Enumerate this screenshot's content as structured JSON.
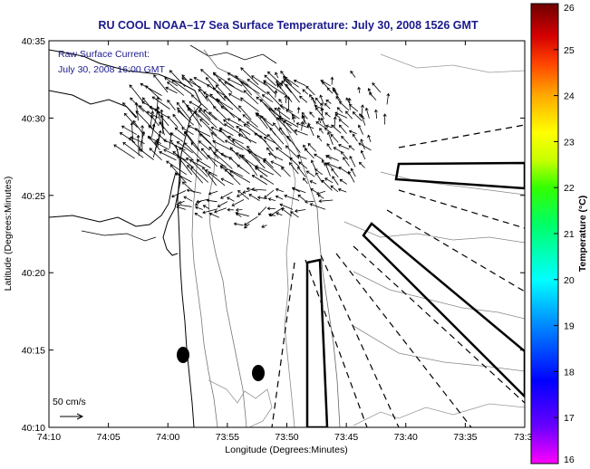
{
  "title": "RU COOL  NOAA–17  Sea Surface Temperature:  July 30, 2008 1526 GMT",
  "legend": {
    "line1": "Raw Surface Current:",
    "line2": "July 30, 2008 16:00 GMT"
  },
  "scale_label": "50 cm/s",
  "xlabel": "Longitude (Degrees:Minutes)",
  "ylabel": "Latitude (Degrees:Minutes)",
  "x_ticks": [
    "74:10",
    "74:05",
    "74:00",
    "73:55",
    "73:50",
    "73:45",
    "73:40",
    "73:35",
    "73:3"
  ],
  "y_ticks": [
    "40:35",
    "40:30",
    "40:25",
    "40:20",
    "40:15",
    "40:10"
  ],
  "colorbar": {
    "label": "Temperature (°C)",
    "ticks": [
      "26",
      "25",
      "24",
      "23",
      "22",
      "21",
      "20",
      "19",
      "18",
      "17",
      "16"
    ],
    "colors": [
      "#ff00ff",
      "#6a00ff",
      "#0000ff",
      "#0088ff",
      "#00ffff",
      "#00ff66",
      "#33ff00",
      "#c8ff00",
      "#ffff00",
      "#ffaa00",
      "#ff4400",
      "#d40000",
      "#6e0000"
    ]
  },
  "chart_data": {
    "type": "map",
    "xlim": [
      "74:10",
      "73:3"
    ],
    "ylim": [
      "40:10",
      "40:35"
    ],
    "temperature_range": [
      16,
      26
    ]
  }
}
